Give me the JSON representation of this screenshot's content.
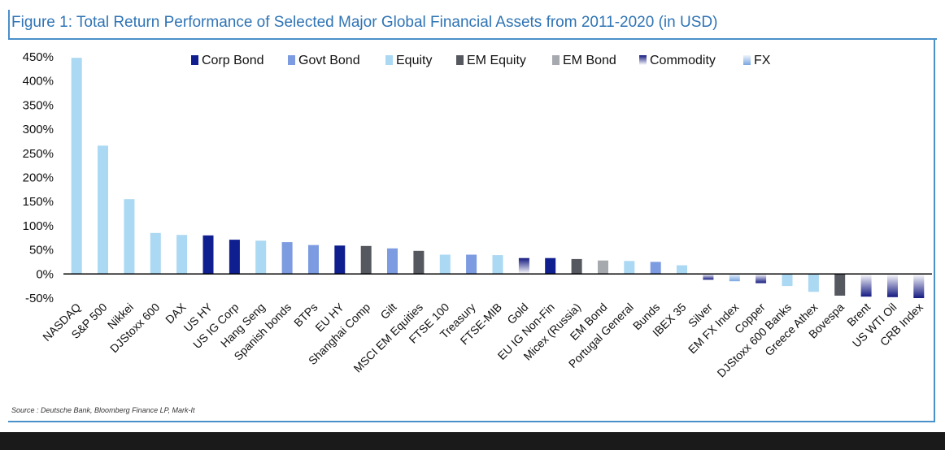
{
  "title": "Figure 1: Total Return Performance of Selected Major Global Financial Assets from 2011-2020 (in USD)",
  "source": "Source : Deutsche Bank, Bloomberg Finance LP, Mark-It",
  "chart_data": {
    "type": "bar",
    "title": "Figure 1: Total Return Performance of Selected Major Global Financial Assets from 2011-2020 (in USD)",
    "xlabel": "",
    "ylabel": "",
    "ylim": [
      -50,
      450
    ],
    "yticks": [
      "450%",
      "400%",
      "350%",
      "300%",
      "250%",
      "200%",
      "150%",
      "100%",
      "50%",
      "0%",
      "-50%"
    ],
    "ytick_values": [
      450,
      400,
      350,
      300,
      250,
      200,
      150,
      100,
      50,
      0,
      -50
    ],
    "legend_position": "top",
    "legend": [
      {
        "name": "Corp Bond",
        "color": "#0f1f8f"
      },
      {
        "name": "Govt Bond",
        "color": "#7d9be0"
      },
      {
        "name": "Equity",
        "color": "#abd8f2"
      },
      {
        "name": "EM Equity",
        "color": "#55585f"
      },
      {
        "name": "EM Bond",
        "color": "#a6a9ae"
      },
      {
        "name": "Commodity",
        "color": "#1a1a85",
        "gradient": true
      },
      {
        "name": "FX",
        "color": "#8ab4e8",
        "gradient": true
      }
    ],
    "categories": [
      "NASDAQ",
      "S&P 500",
      "Nikkei",
      "DJStoxx 600",
      "DAX",
      "US HY",
      "US IG Corp",
      "Hang Seng",
      "Spanish bonds",
      "BTPs",
      "EU HY",
      "Shanghai Comp",
      "Gilt",
      "MSCI EM Equities",
      "FTSE 100",
      "Treasury",
      "FTSE-MIB",
      "Gold",
      "EU IG Non-Fin",
      "Micex (Russia)",
      "EM Bond",
      "Portugal General",
      "Bunds",
      "IBEX 35",
      "Silver",
      "EM FX Index",
      "Copper",
      "DJStoxx 600 Banks",
      "Greece Athex",
      "Bovespa",
      "Brent",
      "US WTI Oil",
      "CRB Index"
    ],
    "values": [
      448,
      266,
      155,
      85,
      81,
      80,
      71,
      69,
      66,
      60,
      59,
      58,
      53,
      48,
      40,
      40,
      39,
      33,
      33,
      31,
      28,
      27,
      25,
      18,
      -12,
      -15,
      -19,
      -25,
      -37,
      -45,
      -47,
      -48,
      -50
    ],
    "asset_class": [
      "Equity",
      "Equity",
      "Equity",
      "Equity",
      "Equity",
      "Corp Bond",
      "Corp Bond",
      "Equity",
      "Govt Bond",
      "Govt Bond",
      "Corp Bond",
      "EM Equity",
      "Govt Bond",
      "EM Equity",
      "Equity",
      "Govt Bond",
      "Equity",
      "Commodity",
      "Corp Bond",
      "EM Equity",
      "EM Bond",
      "Equity",
      "Govt Bond",
      "Equity",
      "Commodity",
      "FX",
      "Commodity",
      "Equity",
      "Equity",
      "EM Equity",
      "Commodity",
      "Commodity",
      "Commodity"
    ]
  }
}
